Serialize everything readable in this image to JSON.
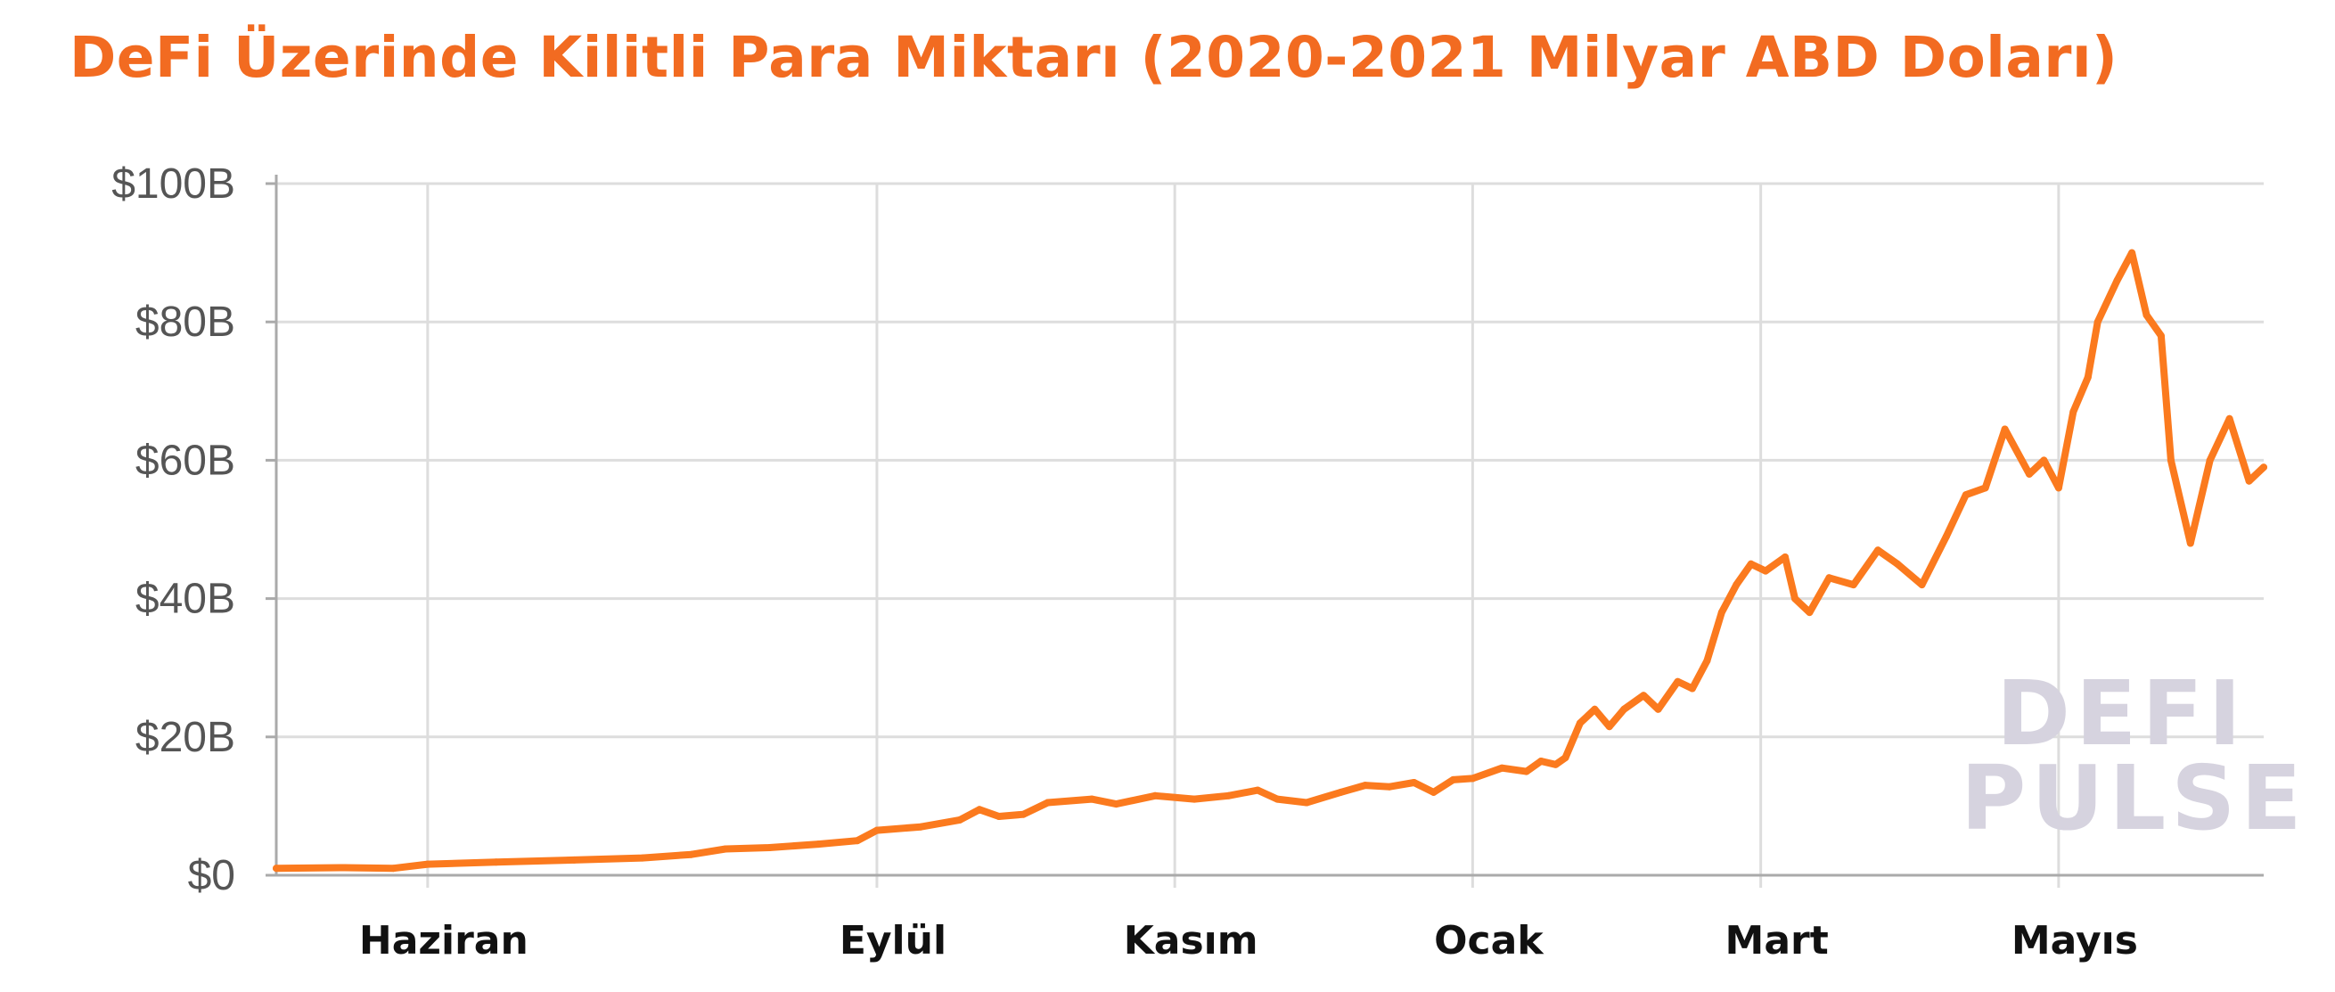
{
  "title": "DeFi Üzerinde Kilitli Para Miktarı (2020-2021 Milyar ABD Doları)",
  "watermark": {
    "line1": "DEFI",
    "line2": "PULSE"
  },
  "colors": {
    "line": "#fb7a1e",
    "title": "#f26b21",
    "grid": "#dddddd",
    "axis": "#aaaaaa",
    "watermark": "#d6d3df"
  },
  "chart_data": {
    "type": "line",
    "title": "DeFi Üzerinde Kilitli Para Miktarı (2020-2021 Milyar ABD Doları)",
    "xlabel": "",
    "ylabel": "",
    "ylim": [
      0,
      100
    ],
    "y_ticks": [
      {
        "value": 0,
        "label": "$0"
      },
      {
        "value": 20,
        "label": "$20B"
      },
      {
        "value": 40,
        "label": "$40B"
      },
      {
        "value": 60,
        "label": "$60B"
      },
      {
        "value": 80,
        "label": "$80B"
      },
      {
        "value": 100,
        "label": "$100B"
      }
    ],
    "xlim": [
      "2020-05-01",
      "2021-06-12"
    ],
    "x_ticks": [
      {
        "date": "2020-06-01",
        "label": "Haziran"
      },
      {
        "date": "2020-09-01",
        "label": "Eylül"
      },
      {
        "date": "2020-11-01",
        "label": "Kasım"
      },
      {
        "date": "2021-01-01",
        "label": "Ocak"
      },
      {
        "date": "2021-03-01",
        "label": "Mart"
      },
      {
        "date": "2021-05-01",
        "label": "Mayıs"
      }
    ],
    "grid": true,
    "series": [
      {
        "values": [
          [
            "2020-05-01",
            1.0
          ],
          [
            "2020-05-15",
            1.1
          ],
          [
            "2020-05-25",
            1.0
          ],
          [
            "2020-06-01",
            1.6
          ],
          [
            "2020-06-15",
            1.9
          ],
          [
            "2020-07-01",
            2.2
          ],
          [
            "2020-07-15",
            2.5
          ],
          [
            "2020-07-25",
            3.0
          ],
          [
            "2020-08-01",
            3.8
          ],
          [
            "2020-08-10",
            4.0
          ],
          [
            "2020-08-20",
            4.5
          ],
          [
            "2020-08-28",
            5.0
          ],
          [
            "2020-09-01",
            6.5
          ],
          [
            "2020-09-10",
            7.0
          ],
          [
            "2020-09-18",
            8.0
          ],
          [
            "2020-09-22",
            9.5
          ],
          [
            "2020-09-26",
            8.5
          ],
          [
            "2020-10-01",
            8.8
          ],
          [
            "2020-10-06",
            10.5
          ],
          [
            "2020-10-15",
            11.0
          ],
          [
            "2020-10-20",
            10.3
          ],
          [
            "2020-10-28",
            11.5
          ],
          [
            "2020-11-05",
            11.0
          ],
          [
            "2020-11-12",
            11.5
          ],
          [
            "2020-11-18",
            12.3
          ],
          [
            "2020-11-22",
            11.0
          ],
          [
            "2020-11-28",
            10.5
          ],
          [
            "2020-12-05",
            12.0
          ],
          [
            "2020-12-10",
            13.0
          ],
          [
            "2020-12-15",
            12.8
          ],
          [
            "2020-12-20",
            13.4
          ],
          [
            "2020-12-24",
            12.0
          ],
          [
            "2020-12-28",
            13.8
          ],
          [
            "2021-01-01",
            14.0
          ],
          [
            "2021-01-07",
            15.5
          ],
          [
            "2021-01-12",
            15.0
          ],
          [
            "2021-01-15",
            16.5
          ],
          [
            "2021-01-18",
            16.0
          ],
          [
            "2021-01-20",
            17.0
          ],
          [
            "2021-01-23",
            22.0
          ],
          [
            "2021-01-26",
            24.0
          ],
          [
            "2021-01-29",
            21.5
          ],
          [
            "2021-02-01",
            24.0
          ],
          [
            "2021-02-05",
            26.0
          ],
          [
            "2021-02-08",
            24.0
          ],
          [
            "2021-02-12",
            28.0
          ],
          [
            "2021-02-15",
            27.0
          ],
          [
            "2021-02-18",
            31.0
          ],
          [
            "2021-02-21",
            38.0
          ],
          [
            "2021-02-24",
            42.0
          ],
          [
            "2021-02-27",
            45.0
          ],
          [
            "2021-03-02",
            44.0
          ],
          [
            "2021-03-06",
            46.0
          ],
          [
            "2021-03-08",
            40.0
          ],
          [
            "2021-03-11",
            38.0
          ],
          [
            "2021-03-15",
            43.0
          ],
          [
            "2021-03-20",
            42.0
          ],
          [
            "2021-03-25",
            47.0
          ],
          [
            "2021-03-29",
            45.0
          ],
          [
            "2021-04-03",
            42.0
          ],
          [
            "2021-04-08",
            49.0
          ],
          [
            "2021-04-12",
            55.0
          ],
          [
            "2021-04-16",
            56.0
          ],
          [
            "2021-04-20",
            64.5
          ],
          [
            "2021-04-25",
            58.0
          ],
          [
            "2021-04-28",
            60.0
          ],
          [
            "2021-05-01",
            56.0
          ],
          [
            "2021-05-04",
            67.0
          ],
          [
            "2021-05-07",
            72.0
          ],
          [
            "2021-05-09",
            80.0
          ],
          [
            "2021-05-13",
            86.0
          ],
          [
            "2021-05-16",
            90.0
          ],
          [
            "2021-05-19",
            81.0
          ],
          [
            "2021-05-22",
            78.0
          ],
          [
            "2021-05-24",
            60.0
          ],
          [
            "2021-05-28",
            48.0
          ],
          [
            "2021-06-01",
            60.0
          ],
          [
            "2021-06-05",
            66.0
          ],
          [
            "2021-06-09",
            57.0
          ],
          [
            "2021-06-12",
            59.0
          ]
        ]
      }
    ]
  }
}
